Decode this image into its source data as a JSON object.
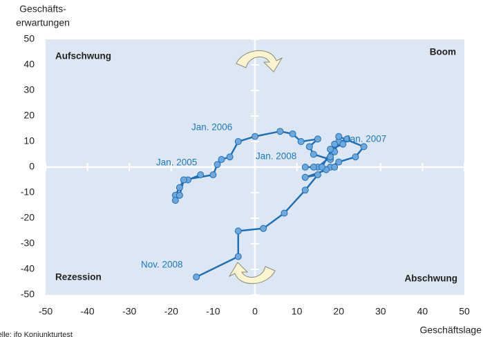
{
  "chart_data": {
    "type": "line",
    "y_label_lines": [
      "Geschäfts-",
      "erwartungen"
    ],
    "x_label": "Geschäftslage",
    "source": "Quelle: ifo Konjunkturtest",
    "quadrants": {
      "Aufschwung": "#a9c35a",
      "Boom": "#22a052",
      "Rezession": "#c4262e",
      "Abschwung": "#d52a8a"
    },
    "annotations": [
      "Jan. 2005",
      "Jan. 2006",
      "Jan. 2007",
      "Jan. 2008",
      "Nov. 2008"
    ],
    "xlim": [
      -50,
      50
    ],
    "ylim": [
      -50,
      50
    ],
    "xticks": [
      -50,
      -40,
      -30,
      -20,
      -10,
      0,
      10,
      20,
      30,
      40,
      50
    ],
    "yticks": [
      -50,
      -40,
      -30,
      -20,
      -10,
      0,
      10,
      20,
      30,
      40,
      50
    ],
    "background": "#dde6f3",
    "series": [
      {
        "color": "#1e6fb5",
        "marker_color": "#6ea8dc",
        "x": [
          -13,
          -16,
          -17,
          -18,
          -19,
          -19,
          -18,
          -17,
          -10,
          -9,
          -8,
          -6,
          -4,
          0,
          6,
          9,
          11,
          15,
          13,
          14,
          18,
          19,
          20,
          20,
          26,
          24,
          20,
          18,
          17,
          15,
          18,
          18,
          21,
          22,
          19,
          16,
          12,
          14,
          19,
          12,
          15,
          12,
          7,
          2,
          -4,
          -4,
          -14
        ],
        "values": [
          -3,
          -5,
          -5,
          -8,
          -11,
          -13,
          -11,
          -5,
          -3,
          1,
          3,
          4,
          10,
          12,
          14,
          13,
          10,
          11,
          8,
          5,
          3,
          6,
          10,
          12,
          8,
          4,
          2,
          0,
          -1,
          0,
          4,
          7,
          9,
          11,
          9,
          0,
          0,
          0,
          0,
          -4,
          -3,
          -9,
          -18,
          -24,
          -25,
          -35,
          -43
        ]
      }
    ]
  }
}
